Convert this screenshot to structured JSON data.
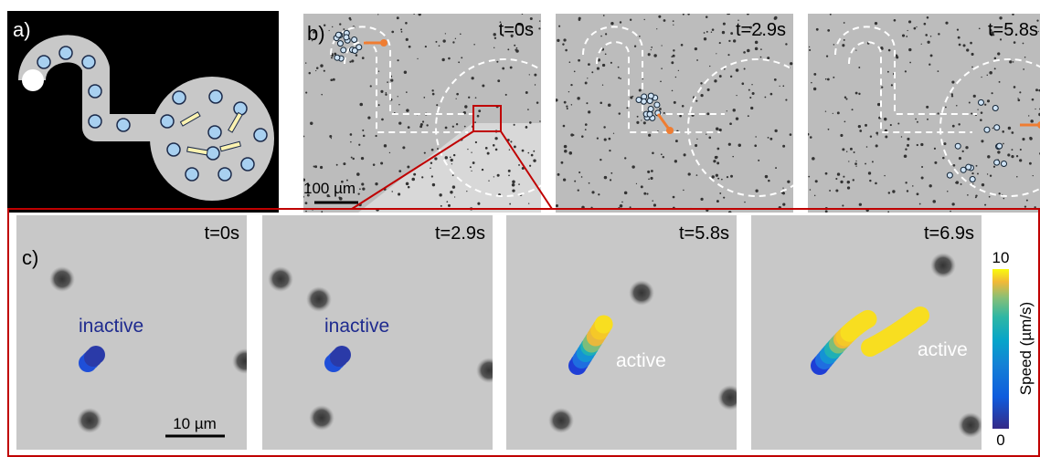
{
  "panel_a": {
    "label": "a)"
  },
  "panel_b": {
    "label": "b)",
    "frames": [
      {
        "time": "t=0s"
      },
      {
        "time": "t=2.9s"
      },
      {
        "time": "t=5.8s"
      }
    ],
    "scale_bar": "100 µm"
  },
  "panel_c": {
    "label": "c)",
    "frames": [
      {
        "time": "t=0s",
        "state": "inactive"
      },
      {
        "time": "t=2.9s",
        "state": "inactive"
      },
      {
        "time": "t=5.8s",
        "state": "active"
      },
      {
        "time": "t=6.9s",
        "state": "active"
      }
    ],
    "scale_bar": "10 µm",
    "colorbar": {
      "label": "Speed (µm/s)",
      "ticks": [
        0,
        10
      ]
    }
  }
}
